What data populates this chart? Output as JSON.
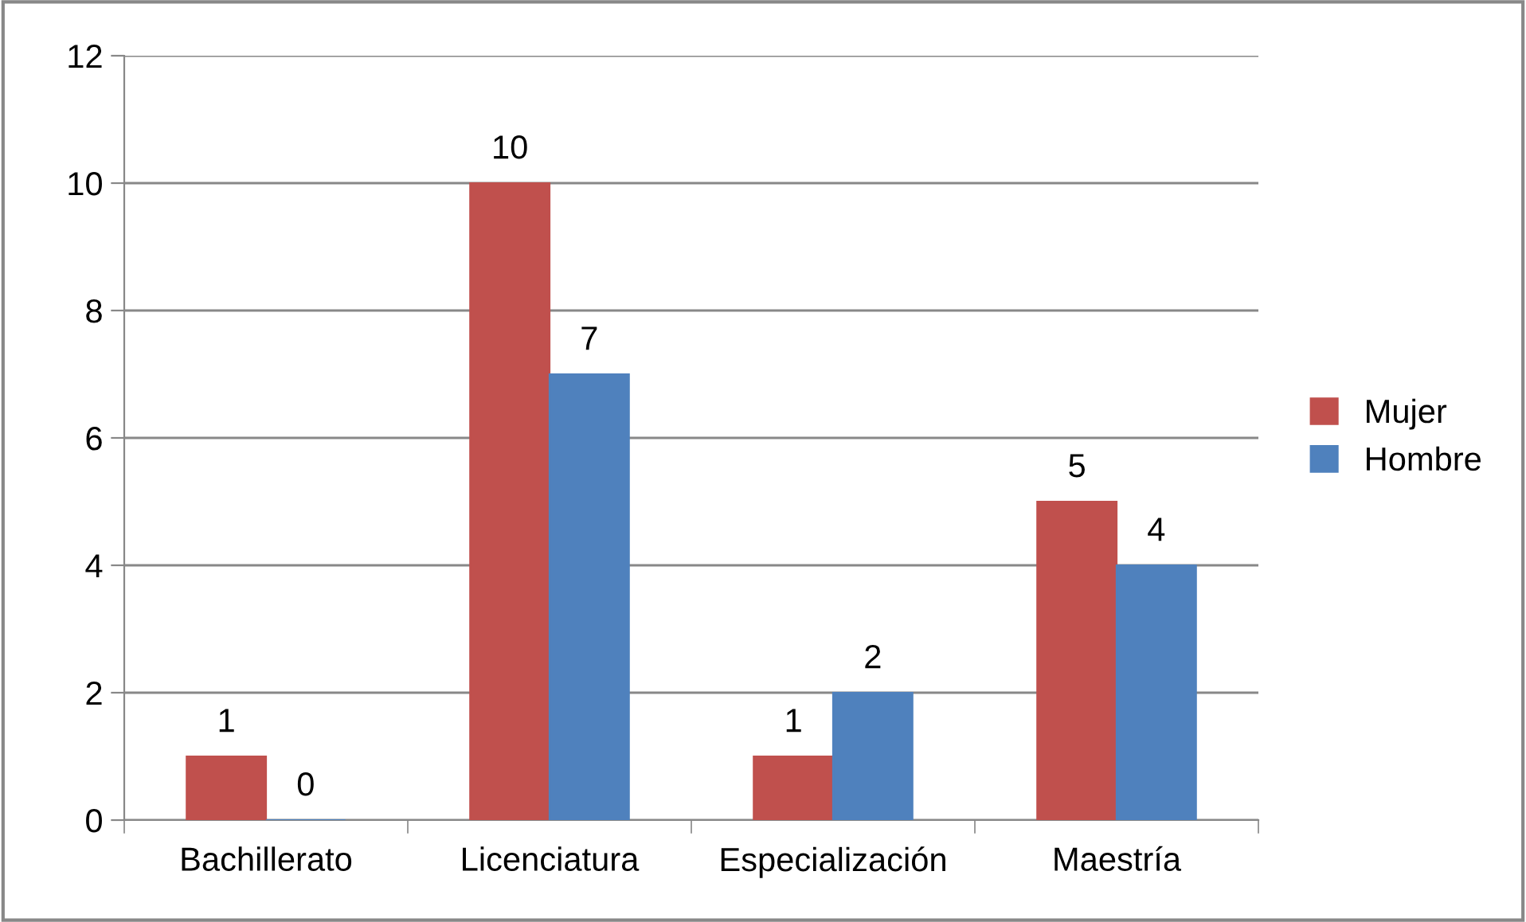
{
  "chart_data": {
    "type": "bar",
    "categories": [
      "Bachillerato",
      "Licenciatura",
      "Especialización",
      "Maestría"
    ],
    "series": [
      {
        "name": "Mujer",
        "color": "#c0504d",
        "values": [
          1,
          10,
          1,
          5
        ]
      },
      {
        "name": "Hombre",
        "color": "#4f81bd",
        "values": [
          0,
          7,
          2,
          4
        ]
      }
    ],
    "ylim": [
      0,
      12
    ],
    "yticks": [
      0,
      2,
      4,
      6,
      8,
      10,
      12
    ],
    "grid": "y",
    "legend": "right",
    "data_labels": true
  }
}
